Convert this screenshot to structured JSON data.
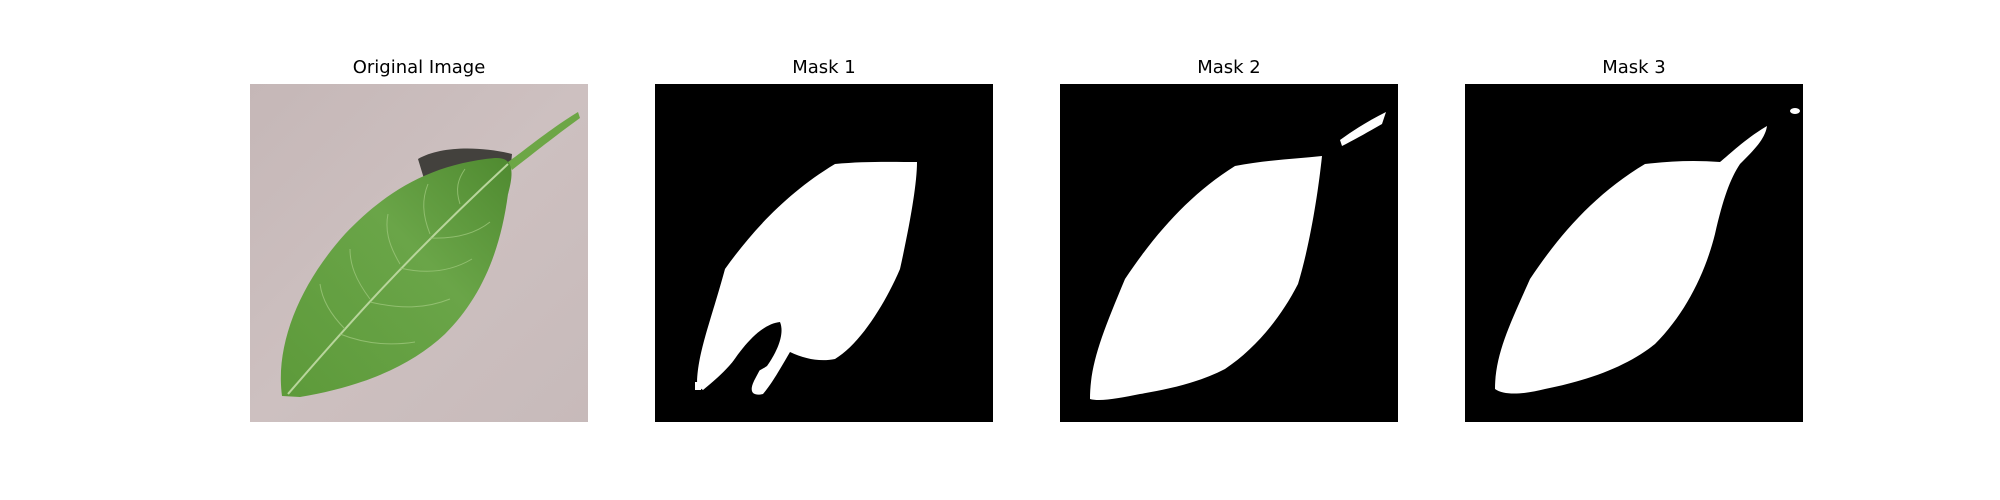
{
  "figure": {
    "panels": [
      {
        "title": "Original Image",
        "kind": "photo"
      },
      {
        "title": "Mask 1",
        "kind": "mask"
      },
      {
        "title": "Mask 2",
        "kind": "mask"
      },
      {
        "title": "Mask 3",
        "kind": "mask"
      }
    ]
  },
  "colors": {
    "background": "#c9bcbc",
    "leaf": "#5e9a3c",
    "leaf_dark": "#4a7f2e",
    "vein": "#b8d59b",
    "shadow": "#3b3a36",
    "mask_bg": "#000000",
    "mask_fg": "#ffffff"
  }
}
